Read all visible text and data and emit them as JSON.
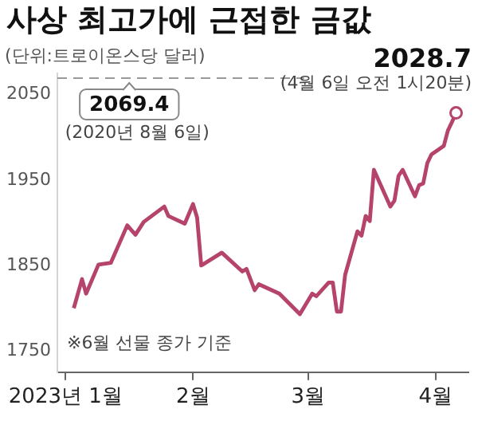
{
  "chart_data": {
    "type": "line",
    "title": "사상 최고가에 근접한 금값",
    "ylabel": "(단위:트로이온스당 달러)",
    "x": [
      "2023-01-03",
      "2023-01-05",
      "2023-01-06",
      "2023-01-09",
      "2023-01-12",
      "2023-01-16",
      "2023-01-18",
      "2023-01-20",
      "2023-01-25",
      "2023-01-26",
      "2023-01-30",
      "2023-02-01",
      "2023-02-02",
      "2023-02-03",
      "2023-02-08",
      "2023-02-13",
      "2023-02-14",
      "2023-02-16",
      "2023-02-17",
      "2023-02-22",
      "2023-02-27",
      "2023-03-02",
      "2023-03-03",
      "2023-03-06",
      "2023-03-07",
      "2023-03-08",
      "2023-03-09",
      "2023-03-10",
      "2023-03-13",
      "2023-03-14",
      "2023-03-15",
      "2023-03-16",
      "2023-03-17",
      "2023-03-21",
      "2023-03-22",
      "2023-03-23",
      "2023-03-24",
      "2023-03-27",
      "2023-03-28",
      "2023-03-29",
      "2023-03-30",
      "2023-03-31",
      "2023-04-03",
      "2023-04-04",
      "2023-04-05",
      "2023-04-06"
    ],
    "series": [
      {
        "color": "#b5436b",
        "values": [
          1800,
          1834,
          1817,
          1851,
          1853,
          1897,
          1886,
          1901,
          1919,
          1908,
          1899,
          1922,
          1906,
          1850,
          1865,
          1843,
          1846,
          1821,
          1828,
          1817,
          1793,
          1817,
          1814,
          1830,
          1830,
          1796,
          1796,
          1839,
          1890,
          1885,
          1908,
          1902,
          1962,
          1919,
          1926,
          1955,
          1962,
          1931,
          1944,
          1946,
          1970,
          1980,
          1990,
          2008,
          2018,
          2028.7
        ]
      }
    ],
    "xlim": [
      "2022-12-30",
      "2023-04-09"
    ],
    "xticks": [
      {
        "value": "2023-01-01",
        "label": "2023년 1월"
      },
      {
        "value": "2023-02-01",
        "label": "2월"
      },
      {
        "value": "2023-03-01",
        "label": "3월"
      },
      {
        "value": "2023-04-01",
        "label": "4월"
      }
    ],
    "ylim": [
      1725,
      2075
    ],
    "yticks": [
      1750,
      1850,
      1950,
      2050
    ],
    "ref_lines": [
      {
        "axis": "y",
        "value": 2069.4,
        "label": "2069.4",
        "line_style": "dashed"
      }
    ],
    "annotations": [
      "(2020년 8월 6일)",
      {
        "text": "2028.7",
        "x": "2023-04-06",
        "y": 2028.7
      },
      "(4월 6일 오전 1시20분)",
      "※6월 선물 종가 기준"
    ],
    "grid": false,
    "legend": false,
    "marker": "none",
    "line_style": "solid"
  }
}
